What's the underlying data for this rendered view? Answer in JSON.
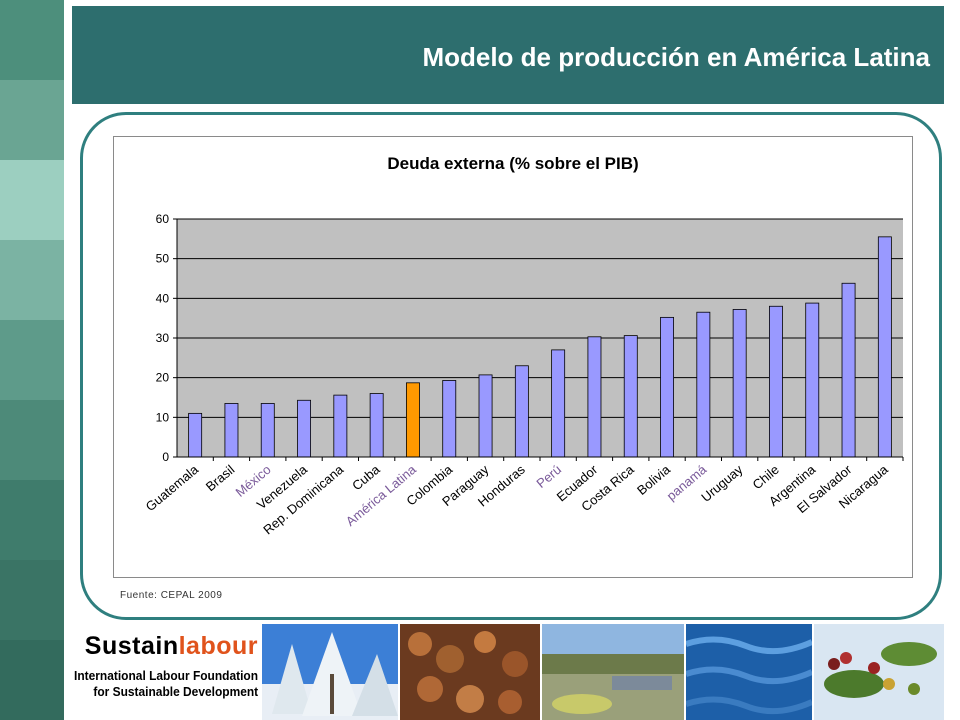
{
  "slide": {
    "title": "Modelo de producción en América Latina",
    "source": "Fuente: CEPAL 2009",
    "colors": {
      "title_bar": "#2d6e6e",
      "frame": "#2f7f7f",
      "bar": "#9999ff",
      "highlight_bar": "#ff9900",
      "plot_bg": "#c0c0c0"
    }
  },
  "logo": {
    "brand_part1": "Sustain",
    "brand_part2": "labour",
    "line2": "International Labour Foundation",
    "line3": "for Sustainable Development"
  },
  "photos": [
    {
      "name": "snowy-forest-photo"
    },
    {
      "name": "stacked-logs-photo"
    },
    {
      "name": "wetland-photo"
    },
    {
      "name": "water-surface-photo"
    },
    {
      "name": "coffee-berries-photo"
    }
  ],
  "chart_data": {
    "type": "bar",
    "title": "Deuda externa (% sobre el PIB)",
    "categories": [
      "Guatemala",
      "Brasil",
      "México",
      "Venezuela",
      "Rep. Dominicana",
      "Cuba",
      "América Latina",
      "Colombia",
      "Paraguay",
      "Honduras",
      "Perú",
      "Ecuador",
      "Costa Rica",
      "Bolivia",
      "panamá",
      "Uruguay",
      "Chile",
      "Argentina",
      "El Salvador",
      "Nicaragua"
    ],
    "values": [
      11,
      13.5,
      13.5,
      14.3,
      15.6,
      16,
      18.7,
      19.3,
      20.7,
      23,
      27,
      30.3,
      30.6,
      35.2,
      36.5,
      37.2,
      38,
      38.8,
      43.8,
      55.5
    ],
    "highlighted_categories": [
      "México",
      "América Latina",
      "Perú",
      "panamá"
    ],
    "highlight_bar": "América Latina",
    "ylim": [
      0,
      60
    ],
    "yticks": [
      0,
      10,
      20,
      30,
      40,
      50,
      60
    ],
    "grid": true,
    "xlabel": "",
    "ylabel": ""
  }
}
